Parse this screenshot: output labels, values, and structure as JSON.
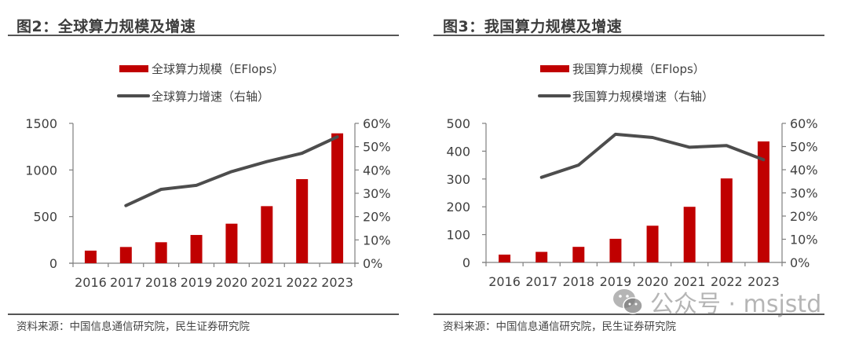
{
  "panels": [
    {
      "title": "图2：全球算力规模及增速",
      "source": "资料来源：中国信息通信研究院，民生证券研究院"
    },
    {
      "title": "图3：我国算力规模及增速",
      "source": "资料来源：中国信息通信研究院，民生证券研究院"
    }
  ],
  "watermark": {
    "icon": "wechat-icon",
    "text": "公众号 · msjstd"
  },
  "colors": {
    "bar": "#C00000",
    "line": "#4D4D4D",
    "axis": "#7F7F7F",
    "text": "#404040"
  },
  "chart_data": [
    {
      "type": "bar+line",
      "title": "图2：全球算力规模及增速",
      "categories": [
        "2016",
        "2017",
        "2018",
        "2019",
        "2020",
        "2021",
        "2022",
        "2023"
      ],
      "series": [
        {
          "name": "全球算力规模（EFlops）",
          "type": "bar",
          "axis": "left",
          "values": [
            135,
            174,
            225,
            303,
            424,
            612,
            902,
            1393
          ]
        },
        {
          "name": "全球算力增速（右轴）",
          "type": "line",
          "axis": "right",
          "values": [
            null,
            0.247,
            0.317,
            0.334,
            0.393,
            0.436,
            0.472,
            0.542
          ]
        }
      ],
      "y_left": {
        "min": 0,
        "max": 1500,
        "ticks": [
          0,
          500,
          1000,
          1500
        ],
        "tick_labels": [
          "0",
          "500",
          "1000",
          "1500"
        ]
      },
      "y_right": {
        "min": 0,
        "max": 0.6,
        "ticks": [
          0,
          0.1,
          0.2,
          0.3,
          0.4,
          0.5,
          0.6
        ],
        "tick_labels": [
          "0%",
          "10%",
          "20%",
          "30%",
          "40%",
          "50%",
          "60%"
        ]
      },
      "legend": "top-center",
      "grid": false
    },
    {
      "type": "bar+line",
      "title": "图3：我国算力规模及增速",
      "categories": [
        "2016",
        "2017",
        "2018",
        "2019",
        "2020",
        "2021",
        "2022",
        "2023"
      ],
      "series": [
        {
          "name": "我国算力规模（EFlops）",
          "type": "bar",
          "axis": "left",
          "values": [
            28,
            38,
            56,
            85,
            132,
            200,
            302,
            435
          ]
        },
        {
          "name": "我国算力规模增速（右轴）",
          "type": "line",
          "axis": "right",
          "values": [
            null,
            0.367,
            0.42,
            0.553,
            0.539,
            0.497,
            0.504,
            0.443
          ]
        }
      ],
      "y_left": {
        "min": 0,
        "max": 500,
        "ticks": [
          0,
          100,
          200,
          300,
          400,
          500
        ],
        "tick_labels": [
          "0",
          "100",
          "200",
          "300",
          "400",
          "500"
        ]
      },
      "y_right": {
        "min": 0,
        "max": 0.6,
        "ticks": [
          0,
          0.1,
          0.2,
          0.3,
          0.4,
          0.5,
          0.6
        ],
        "tick_labels": [
          "0%",
          "10%",
          "20%",
          "30%",
          "40%",
          "50%",
          "60%"
        ]
      },
      "legend": "top-center",
      "grid": false
    }
  ]
}
